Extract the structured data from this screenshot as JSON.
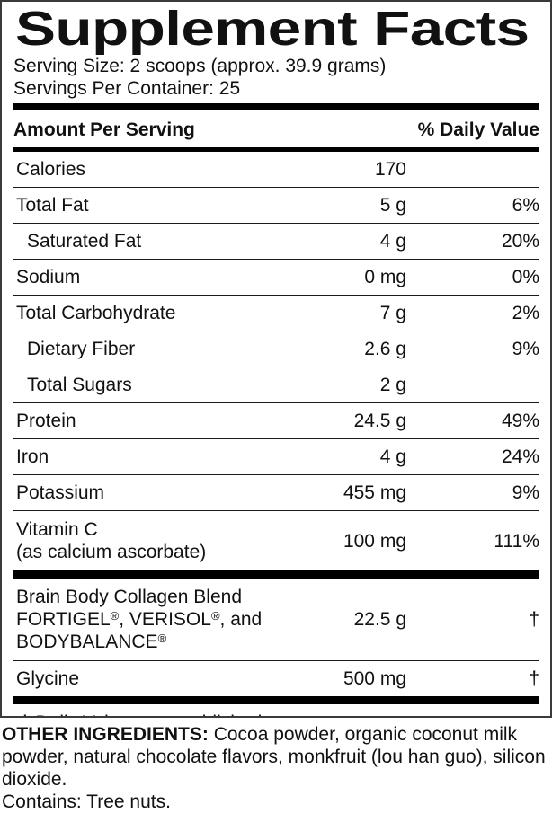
{
  "title": "Supplement Facts",
  "serving_info": {
    "serving_size": "Serving Size: 2 scoops (approx. 39.9 grams)",
    "servings_per_container": "Servings Per Container: 25"
  },
  "table_header": {
    "amount_label": "Amount Per Serving",
    "daily_value_label": "% Daily Value"
  },
  "nutrient_rows": [
    {
      "name": "Calories",
      "amount": "170",
      "daily_value": ""
    },
    {
      "name": "Total Fat",
      "amount": "5 g",
      "daily_value": "6%"
    },
    {
      "name": "Saturated Fat",
      "amount": "4 g",
      "daily_value": "20%",
      "indent": true
    },
    {
      "name": "Sodium",
      "amount": "0 mg",
      "daily_value": "0%"
    },
    {
      "name": "Total Carbohydrate",
      "amount": "7 g",
      "daily_value": "2%"
    },
    {
      "name": "Dietary Fiber",
      "amount": "2.6 g",
      "daily_value": "9%",
      "indent": true
    },
    {
      "name": "Total Sugars",
      "amount": "2 g",
      "daily_value": "",
      "indent": true
    },
    {
      "name": "Protein",
      "amount": "24.5 g",
      "daily_value": "49%"
    },
    {
      "name": "Iron",
      "amount": "4 g",
      "daily_value": "24%"
    },
    {
      "name": "Potassium",
      "amount": "455 mg",
      "daily_value": "9%"
    },
    {
      "name_lines": [
        "Vitamin C",
        "(as calcium ascorbate)"
      ],
      "amount": "100 mg",
      "daily_value": "111%"
    }
  ],
  "blend_rows": [
    {
      "name_lines": [
        "Brain Body Collagen Blend",
        "FORTIGEL®, VERISOL®, and",
        "BODYBALANCE®"
      ],
      "amount": "22.5 g",
      "daily_value": "†"
    },
    {
      "name": "Glycine",
      "amount": "500 mg",
      "daily_value": "†"
    }
  ],
  "footnote": "† Daily Value not established.",
  "other_ingredients": {
    "label": "OTHER INGREDIENTS:",
    "text": "Cocoa powder, organic coconut milk powder, natural chocolate flavors, monkfruit (lou han guo), silicon dioxide.",
    "contains": "Contains: Tree nuts."
  },
  "colors": {
    "text": "#111111",
    "thick_bar": "#000000",
    "panel_border": "#3a3a3a",
    "row_line": "#1a1a1a"
  }
}
